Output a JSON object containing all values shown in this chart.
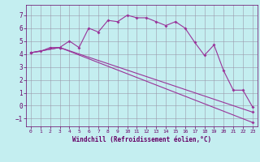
{
  "xlabel": "Windchill (Refroidissement éolien,°C)",
  "bg_color": "#c4eef0",
  "line_color": "#993399",
  "grid_color": "#9999aa",
  "axis_color": "#660066",
  "xlim": [
    -0.5,
    23.5
  ],
  "ylim": [
    -1.6,
    7.8
  ],
  "yticks": [
    -1,
    0,
    1,
    2,
    3,
    4,
    5,
    6,
    7
  ],
  "xticks": [
    0,
    1,
    2,
    3,
    4,
    5,
    6,
    7,
    8,
    9,
    10,
    11,
    12,
    13,
    14,
    15,
    16,
    17,
    18,
    19,
    20,
    21,
    22,
    23
  ],
  "curve1_x": [
    0,
    1,
    2,
    3,
    4,
    5,
    6,
    7,
    8,
    9,
    10,
    11,
    12,
    13,
    14,
    15,
    16,
    17,
    18,
    19,
    20,
    21,
    22,
    23
  ],
  "curve1_y": [
    4.1,
    4.2,
    4.5,
    4.5,
    5.0,
    4.5,
    6.0,
    5.7,
    6.6,
    6.5,
    7.0,
    6.8,
    6.8,
    6.5,
    6.2,
    6.5,
    6.0,
    4.9,
    3.9,
    4.7,
    2.7,
    1.2,
    1.2,
    -0.1
  ],
  "curve2_x": [
    0,
    3,
    23
  ],
  "curve2_y": [
    4.1,
    4.5,
    -0.5
  ],
  "curve3_x": [
    0,
    3,
    23
  ],
  "curve3_y": [
    4.1,
    4.5,
    -1.3
  ]
}
